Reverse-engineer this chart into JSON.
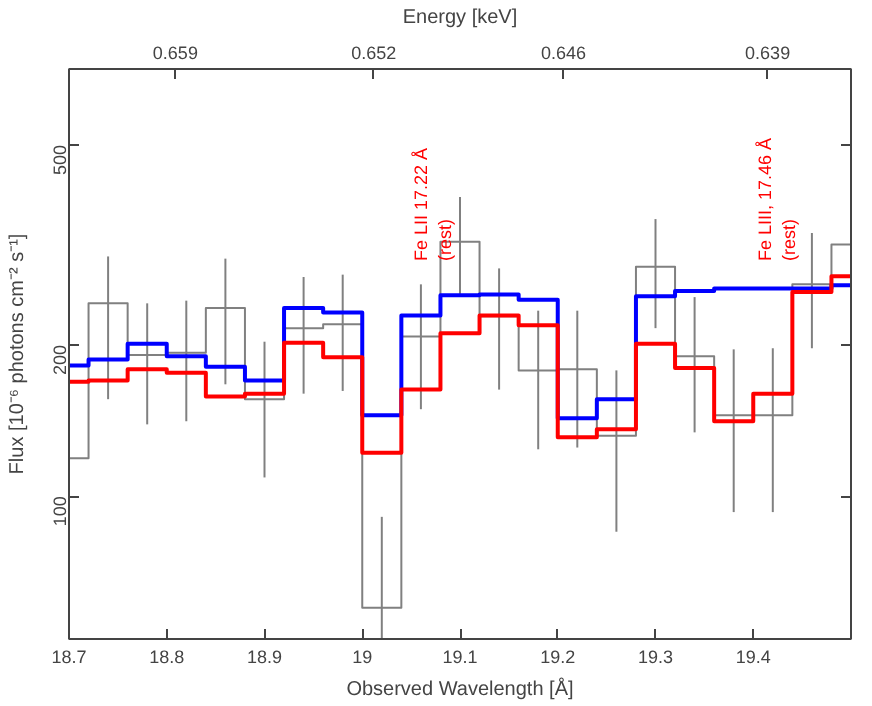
{
  "chart_data": {
    "type": "step",
    "xlabel": "Observed Wavelength [Å]",
    "ylabel": "Flux [10⁻⁶ photons cm⁻² s⁻¹]",
    "x2label": "Energy [keV]",
    "x": [
      18.7,
      18.74,
      18.78,
      18.82,
      18.86,
      18.9,
      18.94,
      18.98,
      19.02,
      19.06,
      19.1,
      19.14,
      19.18,
      19.22,
      19.26,
      19.3,
      19.34,
      19.38,
      19.42,
      19.46,
      19.5
    ],
    "series": [
      {
        "color": "#808080",
        "values": [
          119,
          242,
          191,
          193,
          237,
          156,
          216,
          220,
          60,
          208,
          321,
          228,
          178,
          179,
          132,
          286,
          190,
          145,
          145,
          264,
          317
        ],
        "errors": [
          null,
          [
            156,
            300
          ],
          [
            139,
            242
          ],
          [
            141,
            245
          ],
          [
            167,
            297
          ],
          [
            109,
            203
          ],
          [
            160,
            273
          ],
          [
            162,
            276
          ],
          [
            52,
            91
          ],
          [
            149,
            264
          ],
          [
            251,
            394
          ],
          [
            163,
            284
          ],
          [
            124,
            234
          ],
          [
            125,
            234
          ],
          [
            85,
            178
          ],
          [
            216,
            356
          ],
          [
            134,
            249
          ],
          [
            93,
            196
          ],
          [
            93,
            197
          ],
          [
            197,
            334
          ],
          null
        ]
      },
      {
        "color": "#0000ff",
        "values": [
          182,
          187,
          201,
          190,
          181,
          170,
          237,
          232,
          145,
          229,
          251,
          252,
          246,
          143,
          156,
          250,
          256,
          259,
          259,
          259,
          263
        ]
      },
      {
        "color": "#ff0000",
        "values": [
          169,
          170,
          179,
          176,
          158,
          160,
          202,
          189,
          122,
          163,
          211,
          229,
          219,
          131,
          136,
          201,
          180,
          141,
          160,
          255,
          274
        ]
      }
    ],
    "xlim": [
      18.7,
      19.5
    ],
    "xticks": [
      18.7,
      18.8,
      18.9,
      19,
      19.1,
      19.2,
      19.3,
      19.4
    ],
    "ylim": [
      52,
      708
    ],
    "yticks": [
      100,
      200,
      500
    ],
    "log": "y",
    "x2lim": [
      0.663,
      0.6358
    ],
    "x2ticks": [
      {
        "value": 0.6593,
        "label": "0.659"
      },
      {
        "value": 0.6524,
        "label": "0.652"
      },
      {
        "value": 0.6458,
        "label": "0.646"
      },
      {
        "value": 0.6387,
        "label": "0.639"
      }
    ],
    "annotations": [
      "Fe LII 17.22 Å\n(rest)",
      "Fe LIII, 17.46 Å\n(rest)"
    ],
    "grid": false
  }
}
